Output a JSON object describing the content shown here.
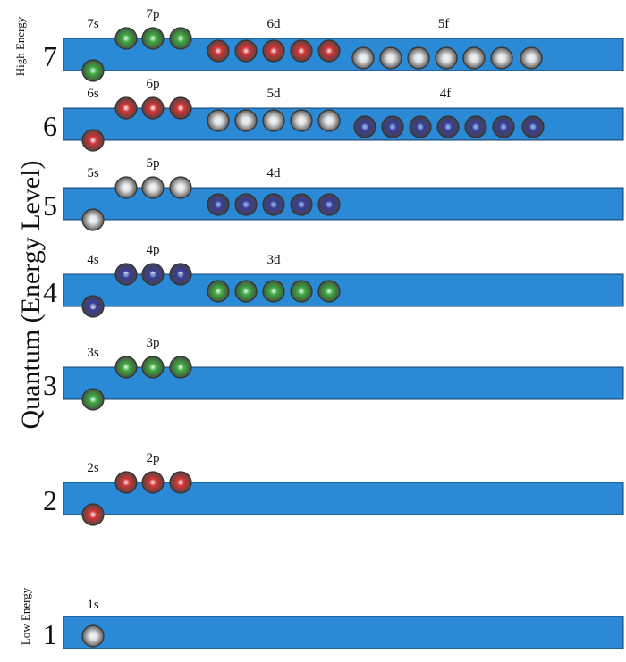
{
  "axis_label": "Quantum (Energy Level)",
  "high_label": "High Energy",
  "low_label": "Low Energy",
  "colors": {
    "bar": "#2b8ad6",
    "green": "#3fae3f",
    "red": "#d83434",
    "white": "#e6e6e6",
    "blue": "#3a3d9a"
  },
  "levels": [
    {
      "n": "7",
      "orbitals": [
        {
          "label": "7s",
          "type": "s",
          "count": 1,
          "color": "green"
        },
        {
          "label": "7p",
          "type": "p",
          "count": 3,
          "color": "green"
        },
        {
          "label": "6d",
          "type": "d",
          "count": 5,
          "color": "red"
        },
        {
          "label": "5f",
          "type": "f",
          "count": 7,
          "color": "white"
        }
      ]
    },
    {
      "n": "6",
      "orbitals": [
        {
          "label": "6s",
          "type": "s",
          "count": 1,
          "color": "red"
        },
        {
          "label": "6p",
          "type": "p",
          "count": 3,
          "color": "red"
        },
        {
          "label": "5d",
          "type": "d",
          "count": 5,
          "color": "white"
        },
        {
          "label": "4f",
          "type": "f",
          "count": 7,
          "color": "blue"
        }
      ]
    },
    {
      "n": "5",
      "orbitals": [
        {
          "label": "5s",
          "type": "s",
          "count": 1,
          "color": "white"
        },
        {
          "label": "5p",
          "type": "p",
          "count": 3,
          "color": "white"
        },
        {
          "label": "4d",
          "type": "d",
          "count": 5,
          "color": "blue"
        }
      ]
    },
    {
      "n": "4",
      "orbitals": [
        {
          "label": "4s",
          "type": "s",
          "count": 1,
          "color": "blue"
        },
        {
          "label": "4p",
          "type": "p",
          "count": 3,
          "color": "blue"
        },
        {
          "label": "3d",
          "type": "d",
          "count": 5,
          "color": "green"
        }
      ]
    },
    {
      "n": "3",
      "orbitals": [
        {
          "label": "3s",
          "type": "s",
          "count": 1,
          "color": "green"
        },
        {
          "label": "3p",
          "type": "p",
          "count": 3,
          "color": "green"
        }
      ]
    },
    {
      "n": "2",
      "orbitals": [
        {
          "label": "2s",
          "type": "s",
          "count": 1,
          "color": "red"
        },
        {
          "label": "2p",
          "type": "p",
          "count": 3,
          "color": "red"
        }
      ]
    },
    {
      "n": "1",
      "orbitals": [
        {
          "label": "1s",
          "type": "s",
          "count": 1,
          "color": "white"
        }
      ]
    }
  ]
}
